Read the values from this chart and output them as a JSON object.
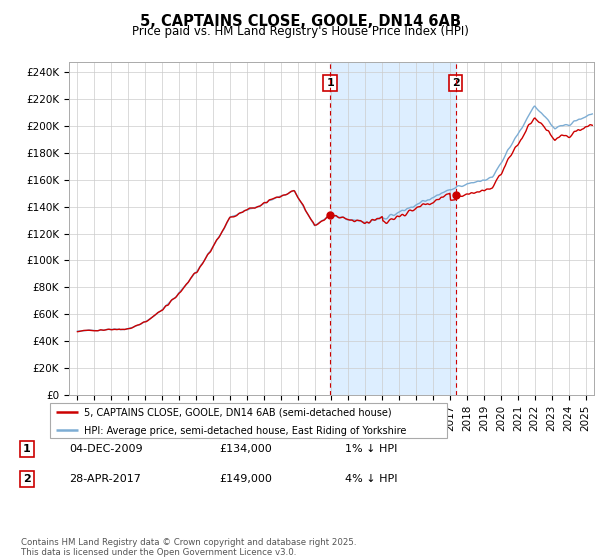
{
  "title": "5, CAPTAINS CLOSE, GOOLE, DN14 6AB",
  "subtitle": "Price paid vs. HM Land Registry's House Price Index (HPI)",
  "ylabel_ticks": [
    "£0",
    "£20K",
    "£40K",
    "£60K",
    "£80K",
    "£100K",
    "£120K",
    "£140K",
    "£160K",
    "£180K",
    "£200K",
    "£220K",
    "£240K"
  ],
  "ylim": [
    0,
    248000
  ],
  "xlim_start": 1994.5,
  "xlim_end": 2025.5,
  "marker1_x": 2009.92,
  "marker2_x": 2017.33,
  "marker1_price": 134000,
  "marker2_price": 149000,
  "hpi_color": "#7dadd4",
  "price_color": "#cc0000",
  "shade_color": "#ddeeff",
  "annotation_table": [
    [
      "1",
      "04-DEC-2009",
      "£134,000",
      "1% ↓ HPI"
    ],
    [
      "2",
      "28-APR-2017",
      "£149,000",
      "4% ↓ HPI"
    ]
  ],
  "legend_label1": "5, CAPTAINS CLOSE, GOOLE, DN14 6AB (semi-detached house)",
  "legend_label2": "HPI: Average price, semi-detached house, East Riding of Yorkshire",
  "footer": "Contains HM Land Registry data © Crown copyright and database right 2025.\nThis data is licensed under the Open Government Licence v3.0."
}
